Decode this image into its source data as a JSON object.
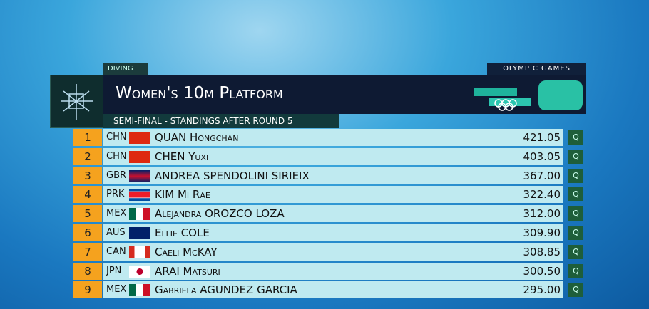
{
  "header": {
    "sport": "DIVING",
    "event": "Women's 10m Platform",
    "brand": "OLYMPIC GAMES",
    "subtitle": "SEMI-FINAL - STANDINGS AFTER ROUND 5"
  },
  "table": {
    "rows": [
      {
        "rank": "1",
        "country": "CHN",
        "name": "QUAN Hongchan",
        "score": "421.05",
        "status": "Q"
      },
      {
        "rank": "2",
        "country": "CHN",
        "name": "CHEN Yuxi",
        "score": "403.05",
        "status": "Q"
      },
      {
        "rank": "3",
        "country": "GBR",
        "name": "ANDREA SPENDOLINI SIRIEIX",
        "score": "367.00",
        "status": "Q"
      },
      {
        "rank": "4",
        "country": "PRK",
        "name": "KIM Mi Rae",
        "score": "322.40",
        "status": "Q"
      },
      {
        "rank": "5",
        "country": "MEX",
        "name": "Alejandra OROZCO LOZA",
        "score": "312.00",
        "status": "Q"
      },
      {
        "rank": "6",
        "country": "AUS",
        "name": "Ellie COLE",
        "score": "309.90",
        "status": "Q"
      },
      {
        "rank": "7",
        "country": "CAN",
        "name": "Caeli McKAY",
        "score": "308.85",
        "status": "Q"
      },
      {
        "rank": "8",
        "country": "JPN",
        "name": "ARAI Matsuri",
        "score": "300.50",
        "status": "Q"
      },
      {
        "rank": "9",
        "country": "MEX",
        "name": "Gabriela AGUNDEZ GARCIA",
        "score": "295.00",
        "status": "Q"
      }
    ]
  }
}
